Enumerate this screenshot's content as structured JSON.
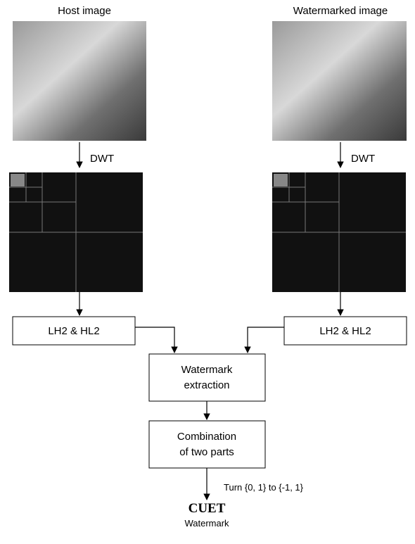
{
  "host_label": "Host image",
  "watermarked_label": "Watermarked image",
  "dwt_left": "DWT",
  "dwt_right": "DWT",
  "box_left": "LH2 & HL2",
  "box_right": "LH2 & HL2",
  "extraction": [
    "Watermark",
    "extraction"
  ],
  "combination": [
    "Combination",
    "of two parts"
  ],
  "turn_label": "Turn {0, 1} to {-1, 1}",
  "logo": "CUET",
  "logo_caption": "Watermark"
}
